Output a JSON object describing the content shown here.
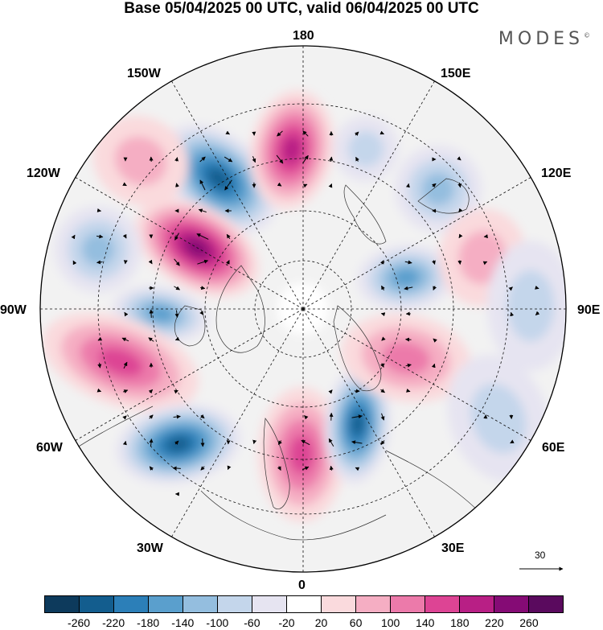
{
  "title": "Base 05/04/2025 00 UTC, valid 06/04/2025 00 UTC",
  "brand": "MODES",
  "brand_mark": "©",
  "longitude_labels": {
    "lon_180": "180",
    "lon_150e": "150E",
    "lon_120e": "120E",
    "lon_90e": "90E",
    "lon_60e": "60E",
    "lon_30e": "30E",
    "lon_0": "0",
    "lon_30w": "30W",
    "lon_60w": "60W",
    "lon_90w": "90W",
    "lon_120w": "120W",
    "lon_150w": "150W"
  },
  "reference_vector": "30",
  "colorbar": {
    "ticks": [
      "-260",
      "-220",
      "-180",
      "-140",
      "-100",
      "-60",
      "-20",
      "20",
      "60",
      "100",
      "140",
      "180",
      "220",
      "260"
    ],
    "colors": [
      "#0d3a5c",
      "#135d8e",
      "#2c7fb8",
      "#5a9fcd",
      "#94bedf",
      "#c4d6eb",
      "#e6e4f1",
      "#ffffff",
      "#fadadd",
      "#f5aec3",
      "#ec7aaa",
      "#dd4494",
      "#b81f85",
      "#850b75",
      "#5a0a5e"
    ]
  }
}
